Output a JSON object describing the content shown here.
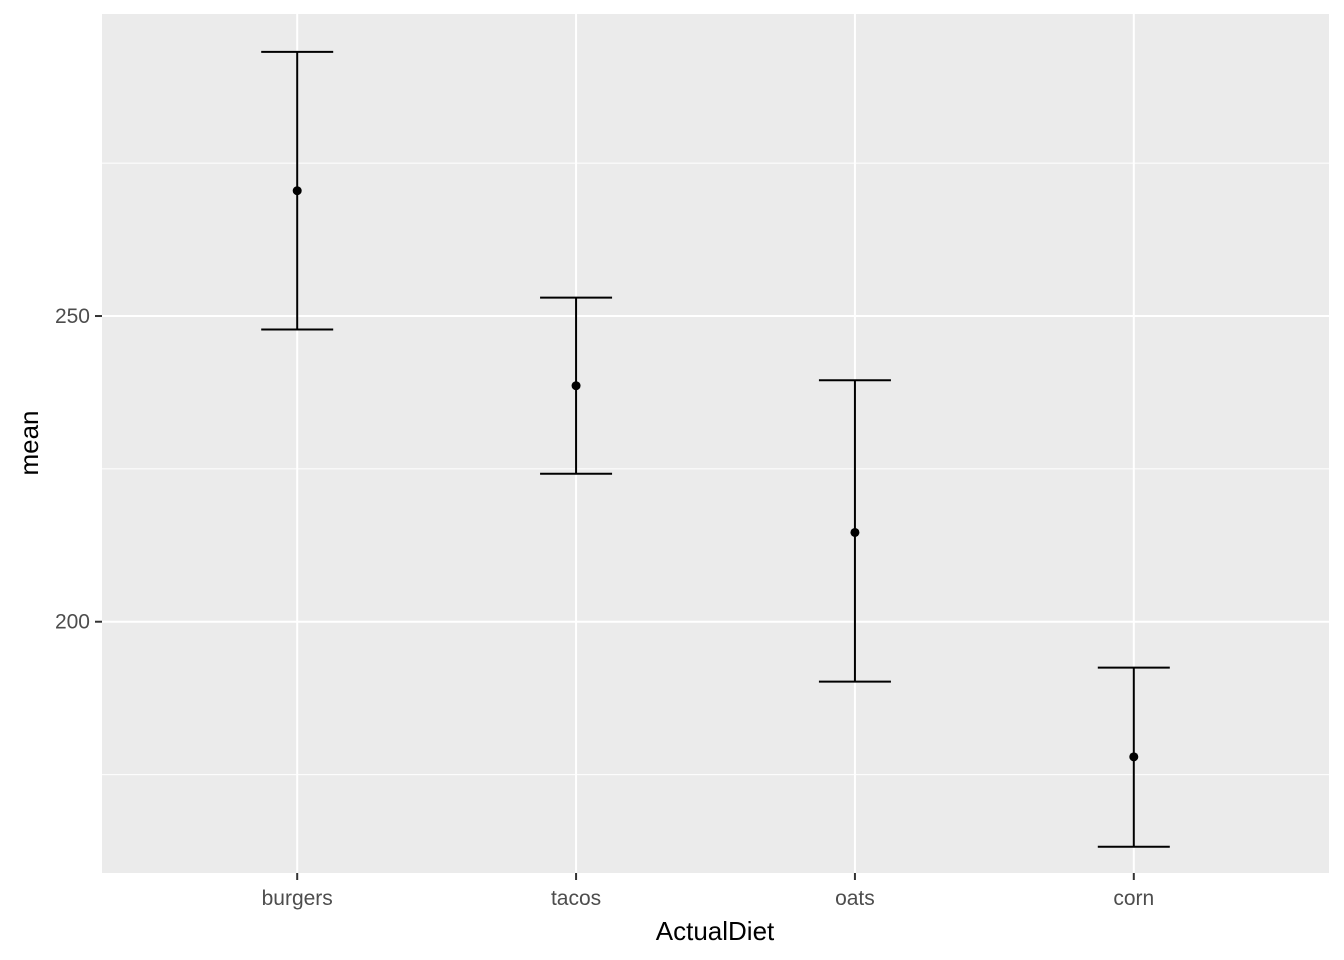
{
  "chart_data": {
    "type": "errorbar",
    "xlabel": "ActualDiet",
    "ylabel": "mean",
    "categories": [
      "burgers",
      "tacos",
      "oats",
      "corn"
    ],
    "series": [
      {
        "mean": [
          270.5,
          238.6,
          214.6,
          177.9
        ],
        "lower": [
          247.8,
          224.2,
          190.2,
          163.2
        ],
        "upper": [
          293.2,
          253.0,
          239.5,
          192.5
        ]
      }
    ],
    "ylim": [
      158.9,
      299.4
    ],
    "yticks": [
      200,
      250
    ],
    "y_minor_ticks": [
      175,
      225,
      275
    ],
    "grid": true,
    "legend": "none",
    "colors": {
      "panel": "#ebebeb",
      "grid": "#ffffff",
      "mark": "#000000",
      "tick_text": "#4d4d4d"
    }
  }
}
